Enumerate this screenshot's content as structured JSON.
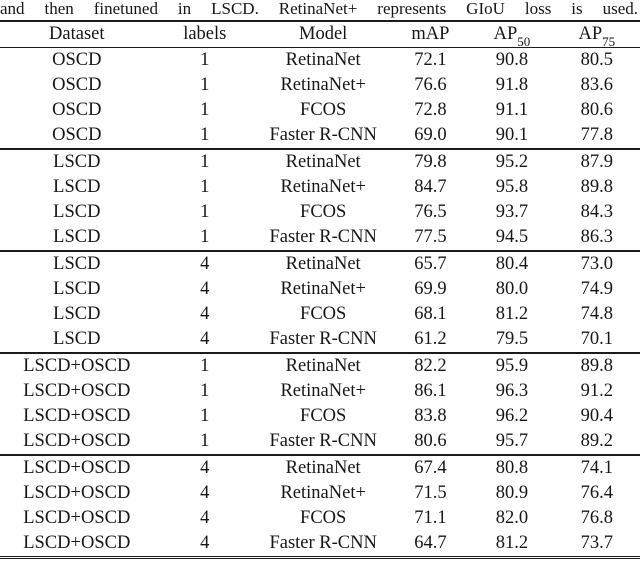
{
  "caption": "and then finetuned in LSCD. RetinaNet+ represents GIoU loss is used.",
  "table": {
    "column_names": [
      "dataset",
      "labels",
      "model",
      "map",
      "ap50",
      "ap75"
    ],
    "headers": [
      {
        "text": "Dataset"
      },
      {
        "text": "labels"
      },
      {
        "text": "Model"
      },
      {
        "text": "mAP"
      },
      {
        "text": "AP",
        "sub": "50"
      },
      {
        "text": "AP",
        "sub": "75"
      }
    ],
    "groups": [
      {
        "rows": [
          [
            "OSCD",
            "1",
            "RetinaNet",
            "72.1",
            "90.8",
            "80.5"
          ],
          [
            "OSCD",
            "1",
            "RetinaNet+",
            "76.6",
            "91.8",
            "83.6"
          ],
          [
            "OSCD",
            "1",
            "FCOS",
            "72.8",
            "91.1",
            "80.6"
          ],
          [
            "OSCD",
            "1",
            "Faster R-CNN",
            "69.0",
            "90.1",
            "77.8"
          ]
        ]
      },
      {
        "rows": [
          [
            "LSCD",
            "1",
            "RetinaNet",
            "79.8",
            "95.2",
            "87.9"
          ],
          [
            "LSCD",
            "1",
            "RetinaNet+",
            "84.7",
            "95.8",
            "89.8"
          ],
          [
            "LSCD",
            "1",
            "FCOS",
            "76.5",
            "93.7",
            "84.3"
          ],
          [
            "LSCD",
            "1",
            "Faster R-CNN",
            "77.5",
            "94.5",
            "86.3"
          ]
        ]
      },
      {
        "rows": [
          [
            "LSCD",
            "4",
            "RetinaNet",
            "65.7",
            "80.4",
            "73.0"
          ],
          [
            "LSCD",
            "4",
            "RetinaNet+",
            "69.9",
            "80.0",
            "74.9"
          ],
          [
            "LSCD",
            "4",
            "FCOS",
            "68.1",
            "81.2",
            "74.8"
          ],
          [
            "LSCD",
            "4",
            "Faster R-CNN",
            "61.2",
            "79.5",
            "70.1"
          ]
        ]
      },
      {
        "rows": [
          [
            "LSCD+OSCD",
            "1",
            "RetinaNet",
            "82.2",
            "95.9",
            "89.8"
          ],
          [
            "LSCD+OSCD",
            "1",
            "RetinaNet+",
            "86.1",
            "96.3",
            "91.2"
          ],
          [
            "LSCD+OSCD",
            "1",
            "FCOS",
            "83.8",
            "96.2",
            "90.4"
          ],
          [
            "LSCD+OSCD",
            "1",
            "Faster R-CNN",
            "80.6",
            "95.7",
            "89.2"
          ]
        ]
      },
      {
        "rows": [
          [
            "LSCD+OSCD",
            "4",
            "RetinaNet",
            "67.4",
            "80.8",
            "74.1"
          ],
          [
            "LSCD+OSCD",
            "4",
            "RetinaNet+",
            "71.5",
            "80.9",
            "76.4"
          ],
          [
            "LSCD+OSCD",
            "4",
            "FCOS",
            "71.1",
            "82.0",
            "76.8"
          ],
          [
            "LSCD+OSCD",
            "4",
            "Faster R-CNN",
            "64.7",
            "81.2",
            "73.7"
          ]
        ]
      }
    ]
  }
}
